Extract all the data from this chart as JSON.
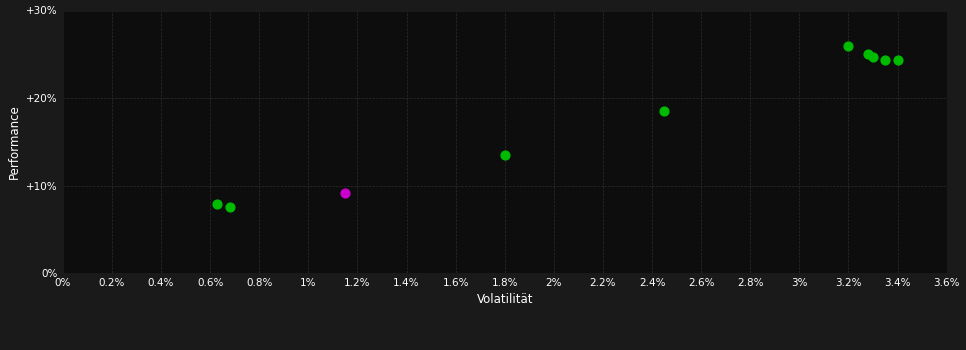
{
  "background_color": "#1a1a1a",
  "plot_bg_color": "#0d0d0d",
  "grid_color": "#2a2a2a",
  "axis_label_color": "#ffffff",
  "tick_label_color": "#ffffff",
  "xlabel": "Volatilität",
  "ylabel": "Performance",
  "xlim": [
    0.0,
    0.036
  ],
  "ylim": [
    0.0,
    0.3
  ],
  "xticks": [
    0.0,
    0.002,
    0.004,
    0.006,
    0.008,
    0.01,
    0.012,
    0.014,
    0.016,
    0.018,
    0.02,
    0.022,
    0.024,
    0.026,
    0.028,
    0.03,
    0.032,
    0.034,
    0.036
  ],
  "xtick_labels": [
    "0%",
    "0.2%",
    "0.4%",
    "0.6%",
    "0.8%",
    "1%",
    "1.2%",
    "1.4%",
    "1.6%",
    "1.8%",
    "2%",
    "2.2%",
    "2.4%",
    "2.6%",
    "2.8%",
    "3%",
    "3.2%",
    "3.4%",
    "3.6%"
  ],
  "yticks": [
    0.0,
    0.1,
    0.2,
    0.3
  ],
  "ytick_labels": [
    "0%",
    "+10%",
    "+20%",
    "+30%"
  ],
  "green_points": [
    [
      0.0063,
      0.079
    ],
    [
      0.0068,
      0.076
    ],
    [
      0.018,
      0.135
    ],
    [
      0.0245,
      0.185
    ],
    [
      0.032,
      0.26
    ],
    [
      0.0328,
      0.25
    ],
    [
      0.033,
      0.247
    ],
    [
      0.0335,
      0.243
    ],
    [
      0.034,
      0.244
    ]
  ],
  "magenta_points": [
    [
      0.0115,
      0.091
    ]
  ],
  "point_size": 40,
  "green_color": "#00bb00",
  "magenta_color": "#cc00cc"
}
